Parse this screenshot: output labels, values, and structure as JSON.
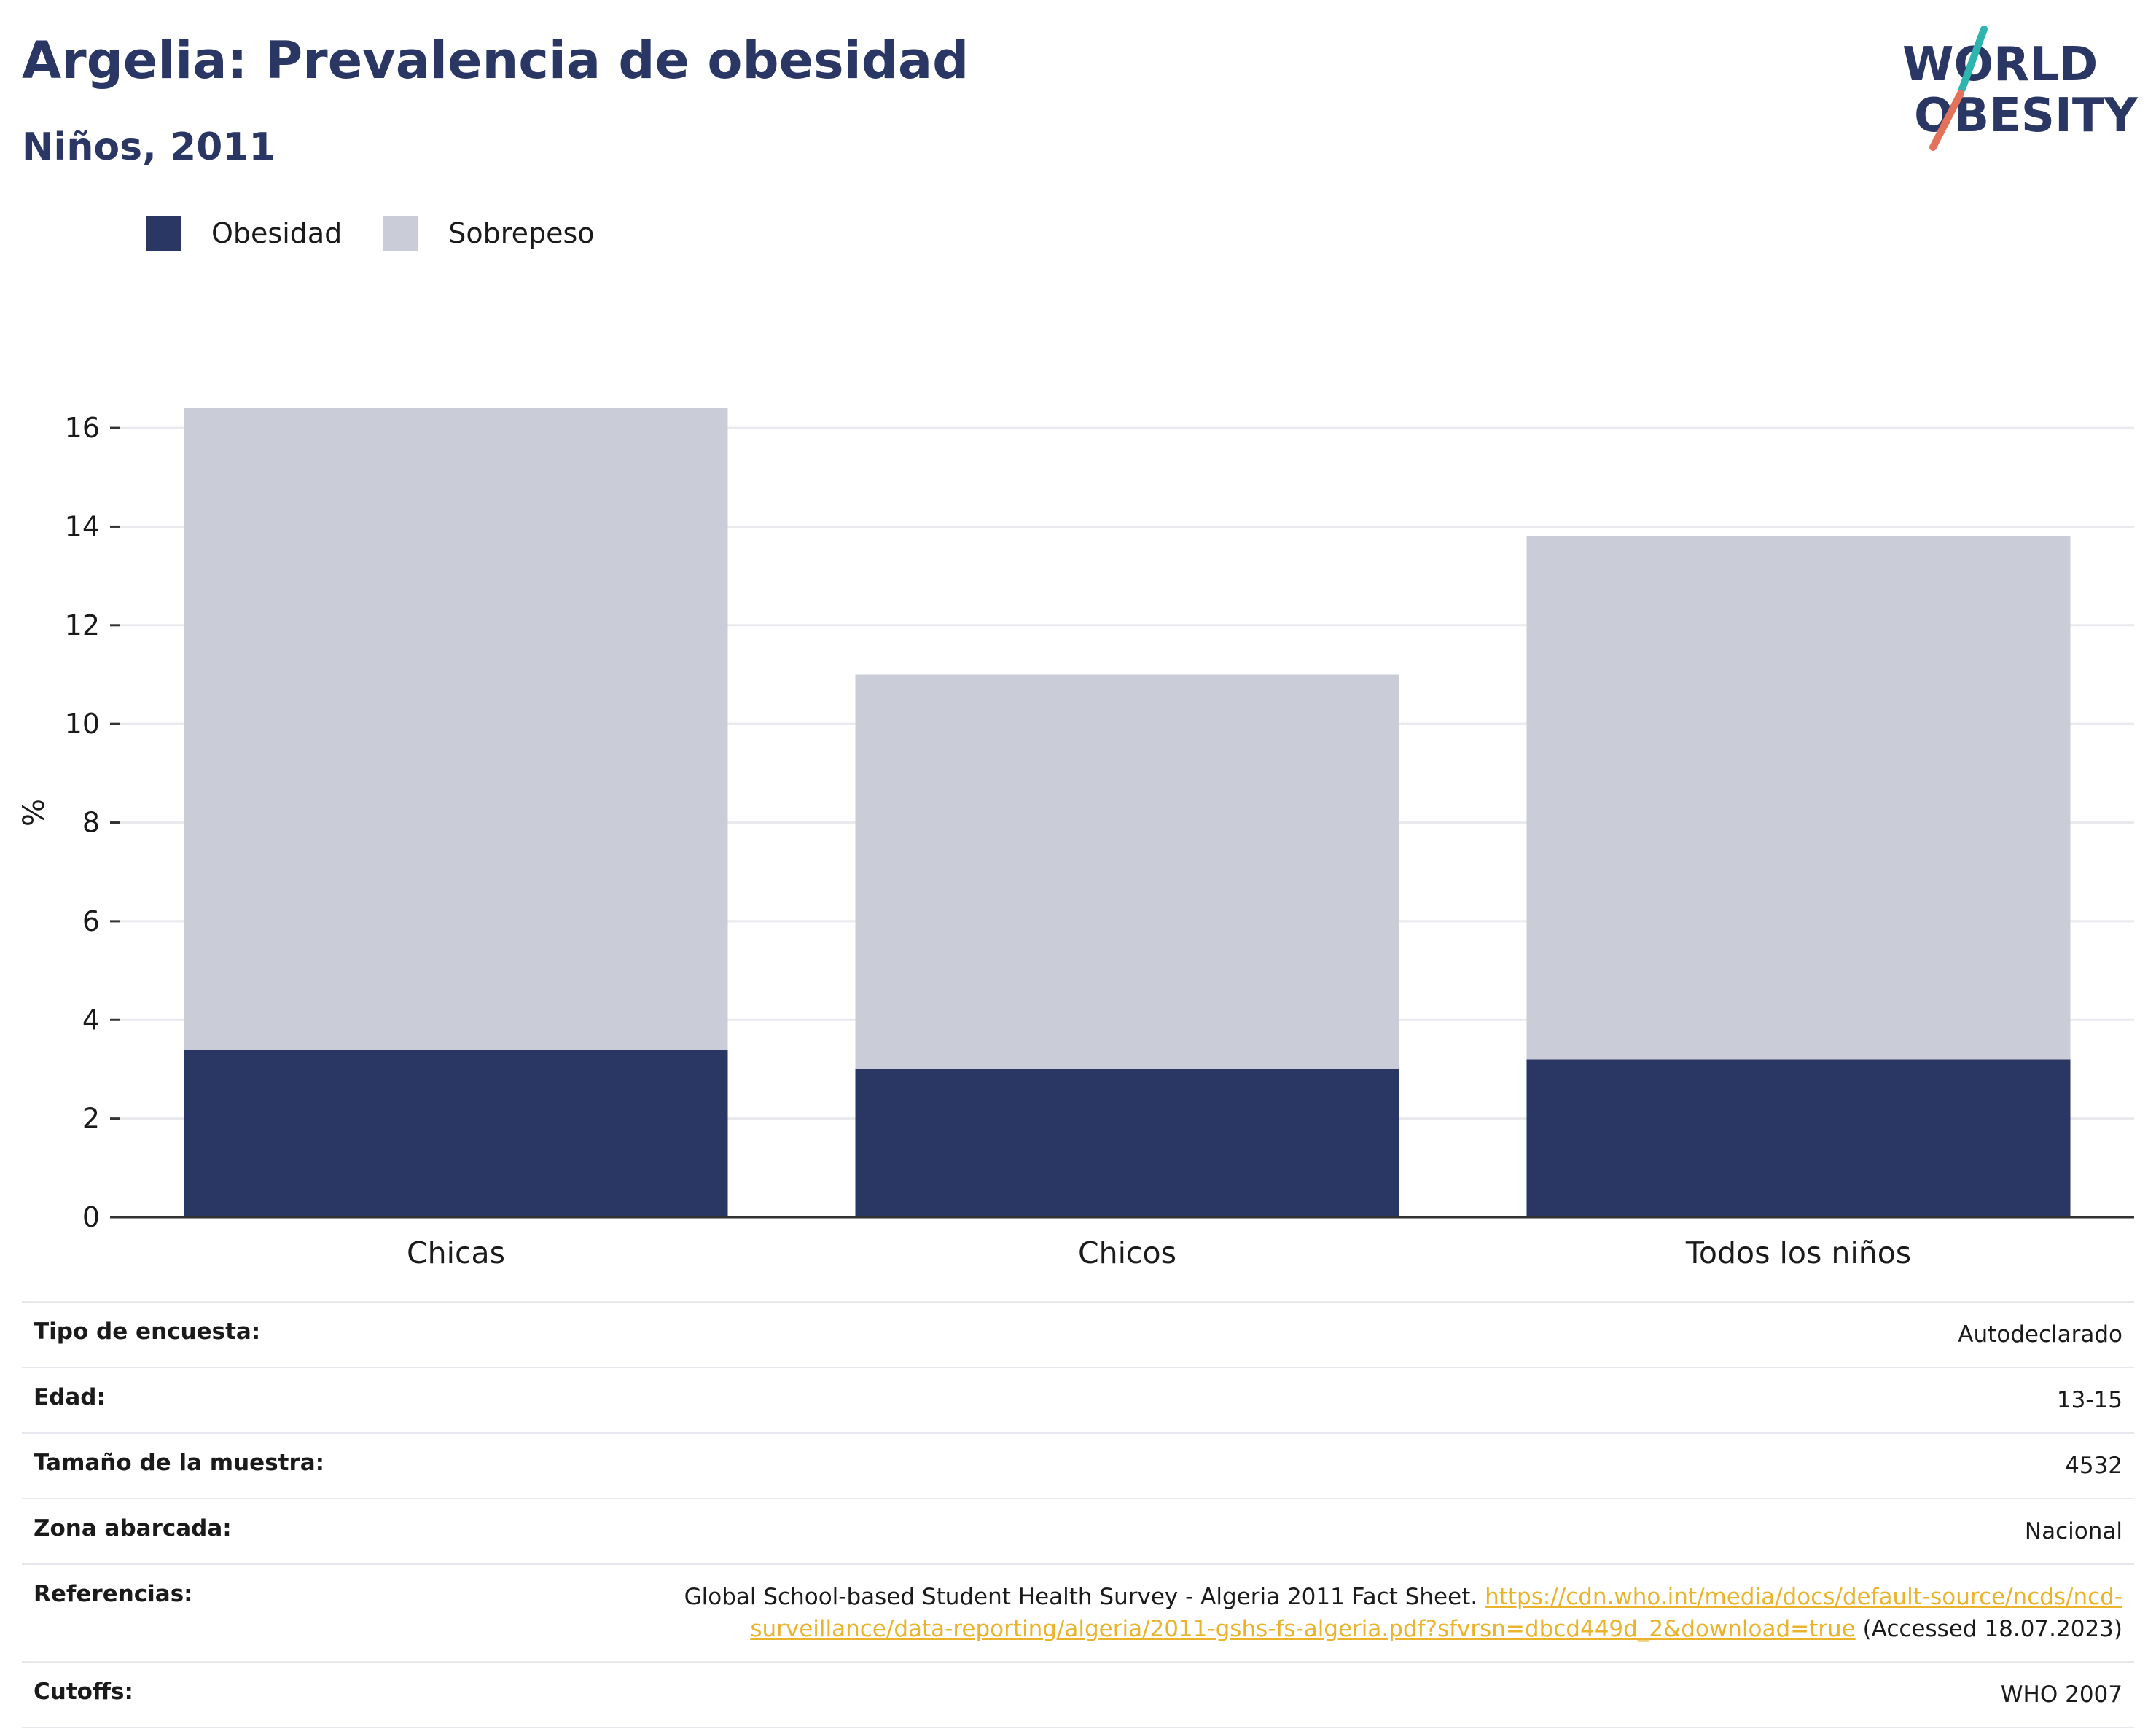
{
  "header": {
    "title": "Argelia: Prevalencia de obesidad",
    "subtitle": "Niños, 2011"
  },
  "logo": {
    "line1": "WORLD",
    "line2": "OBESITY",
    "accent_teal": "#2fb5b0",
    "accent_coral": "#e2725b",
    "text_color": "#2a3663"
  },
  "legend": {
    "items": [
      {
        "label": "Obesidad",
        "color": "#2a3663"
      },
      {
        "label": "Sobrepeso",
        "color": "#cacdd8"
      }
    ]
  },
  "chart_data": {
    "type": "bar",
    "stacked": true,
    "categories": [
      "Chicas",
      "Chicos",
      "Todos los niños"
    ],
    "series": [
      {
        "name": "Obesidad",
        "color": "#2a3663",
        "values": [
          3.4,
          3.0,
          3.2
        ]
      },
      {
        "name": "Sobrepeso",
        "color": "#cacdd8",
        "values": [
          13.0,
          8.0,
          10.6
        ]
      }
    ],
    "totals": [
      16.4,
      11.0,
      13.8
    ],
    "ylabel": "%",
    "ylim": [
      0,
      16.4
    ],
    "yticks": [
      0,
      2,
      4,
      6,
      8,
      10,
      12,
      14,
      16
    ],
    "grid": true,
    "legend_position": "top-left"
  },
  "meta": {
    "rows": [
      {
        "key": "Tipo de encuesta:",
        "value": "Autodeclarado"
      },
      {
        "key": "Edad:",
        "value": "13-15"
      },
      {
        "key": "Tamaño de la muestra:",
        "value": "4532"
      },
      {
        "key": "Zona abarcada:",
        "value": "Nacional"
      },
      {
        "key": "Referencias:",
        "value_prefix": "Global School-based Student Health Survey - Algeria 2011 Fact Sheet. ",
        "link_line1": "https://cdn.who.int/media/docs/default-source/ncds/ncd-",
        "link_line2": "surveillance/data-reporting/algeria/2011-gshs-fs-algeria.pdf?sfvrsn=dbcd449d_2&download=true",
        "value_suffix": " (Accessed 18.07.2023)"
      },
      {
        "key": "Cutoffs:",
        "value": "WHO 2007"
      }
    ]
  }
}
